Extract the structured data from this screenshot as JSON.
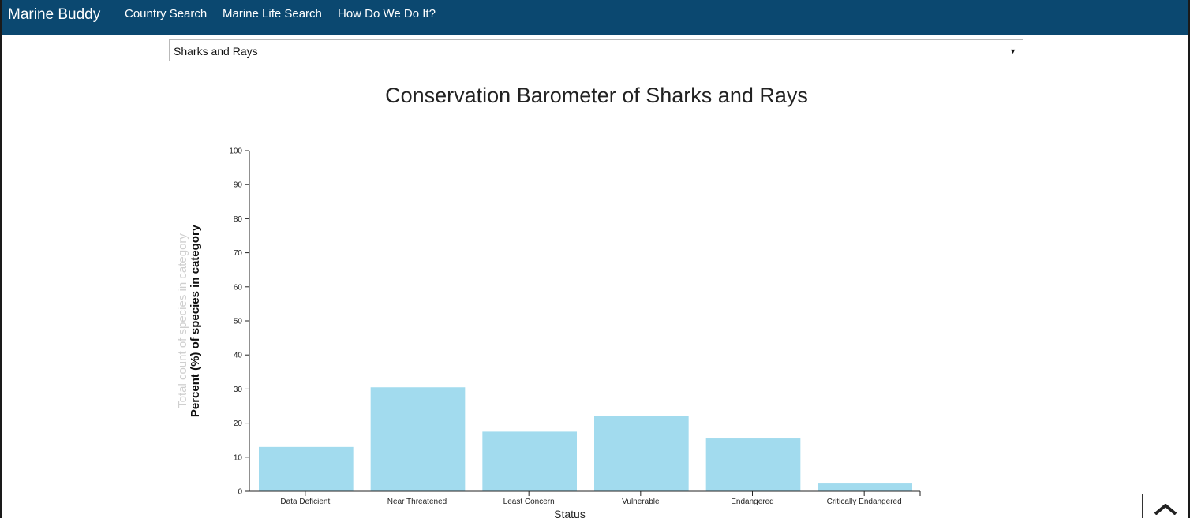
{
  "navbar": {
    "brand": "Marine Buddy",
    "links": [
      {
        "label": "Country Search"
      },
      {
        "label": "Marine Life Search"
      },
      {
        "label": "How Do We Do It?"
      }
    ]
  },
  "species_select": {
    "selected": "Sharks and Rays"
  },
  "colors": {
    "navbar_bg": "#0b4870",
    "bar_fill": "#a2dbee"
  },
  "icons": {
    "select_arrow": "triangle-down-icon",
    "scroll_top": "chevron-up-icon"
  },
  "chart_data": {
    "type": "bar",
    "title": "Conservation Barometer of Sharks and Rays",
    "xlabel": "Status",
    "ylabel": "Percent (%) of species in category",
    "ylabel_faded": "Total count of species in category",
    "categories": [
      "Data Deficient",
      "Near Threatened",
      "Least Concern",
      "Vulnerable",
      "Endangered",
      "Critically Endangered"
    ],
    "values": [
      13,
      30.5,
      17.5,
      22,
      15.5,
      2.3
    ],
    "ylim": [
      0,
      100
    ],
    "yticks": [
      "0",
      "10",
      "20",
      "30",
      "40",
      "50",
      "60",
      "70",
      "80",
      "90",
      "100"
    ],
    "grid": false,
    "legend": "none"
  }
}
